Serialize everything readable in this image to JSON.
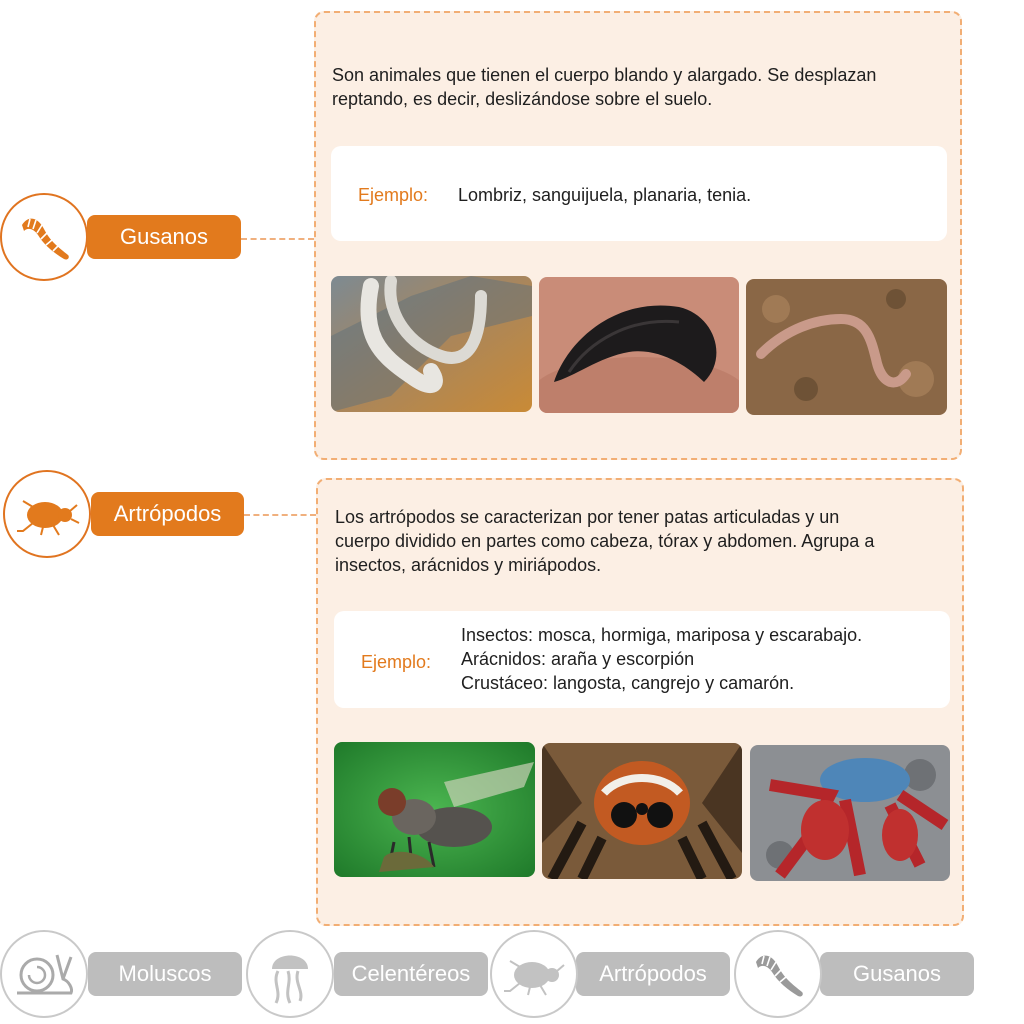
{
  "colors": {
    "accent": "#e27a1d",
    "panel_bg": "#fcefe4",
    "panel_border": "#f2ae74",
    "nav_gray": "#bdbdbd"
  },
  "sections": [
    {
      "label": "Gusanos",
      "icon": "worm-icon",
      "description": "Son animales que tienen el cuerpo blando y alargado. Se desplazan\nreptando, es decir, deslizándose sobre el suelo.",
      "example_label": "Ejemplo:",
      "example_text": "Lombriz, sanguijuela, planaria, tenia.",
      "photos": [
        "planarian-photo",
        "leech-photo",
        "earthworm-photo"
      ]
    },
    {
      "label": "Artrópodos",
      "icon": "beetle-icon",
      "description": "Los artrópodos se caracterizan por tener patas articuladas y un\ncuerpo dividido en partes como cabeza, tórax y abdomen. Agrupa a\ninsectos, arácnidos y miriápodos.",
      "example_label": "Ejemplo:",
      "example_text": "Insectos: mosca, hormiga, mariposa y escarabajo.\nArácnidos: araña y escorpión\nCrustáceo: langosta, cangrejo y camarón.",
      "photos": [
        "fly-photo",
        "spider-photo",
        "crab-photo"
      ]
    }
  ],
  "bottom_nav": [
    {
      "label": "Moluscos",
      "icon": "snail-icon"
    },
    {
      "label": "Celentéreos",
      "icon": "jellyfish-icon"
    },
    {
      "label": "Artrópodos",
      "icon": "beetle-icon"
    },
    {
      "label": "Gusanos",
      "icon": "worm-icon"
    }
  ]
}
